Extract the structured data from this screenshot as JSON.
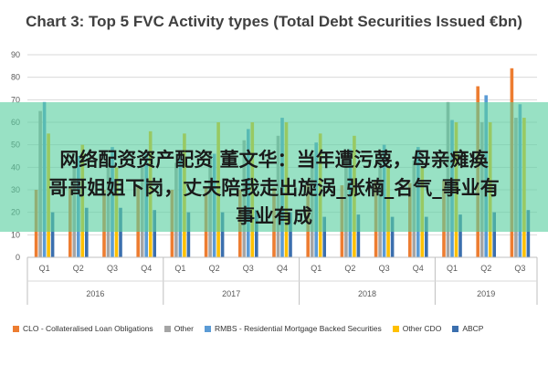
{
  "chart_data": {
    "type": "bar",
    "title": "Chart 3: Top 5 FVC Activity types (Total Debt Securities Issued €bn)",
    "ylim": [
      0,
      90
    ],
    "yticks": [
      "0",
      "10",
      "20",
      "30",
      "40",
      "50",
      "60",
      "70",
      "80",
      "90"
    ],
    "categories": [
      "Q1",
      "Q2",
      "Q3",
      "Q4",
      "Q1",
      "Q2",
      "Q3",
      "Q4",
      "Q1",
      "Q2",
      "Q3",
      "Q4",
      "Q1",
      "Q2",
      "Q3"
    ],
    "groups": [
      {
        "label": "2016",
        "count": 4
      },
      {
        "label": "2017",
        "count": 4
      },
      {
        "label": "2018",
        "count": 4
      },
      {
        "label": "2019",
        "count": 3
      }
    ],
    "series": [
      {
        "name": "CLO - Collateralised Loan Obligations",
        "color": "#ed7d31",
        "values": [
          30,
          31,
          30,
          32,
          30,
          31,
          30,
          31,
          33,
          32,
          34,
          33,
          34,
          76,
          84
        ]
      },
      {
        "name": "Other",
        "color": "#a5a5a5",
        "values": [
          65,
          40,
          42,
          40,
          42,
          46,
          52,
          54,
          46,
          45,
          44,
          43,
          69,
          60,
          62
        ]
      },
      {
        "name": "RMBS - Residential Mortgage Backed Securities",
        "color": "#5b9bd5",
        "values": [
          69,
          45,
          49,
          46,
          46,
          46,
          57,
          62,
          51,
          48,
          50,
          49,
          61,
          72,
          68
        ]
      },
      {
        "name": "Other CDO",
        "color": "#ffc000",
        "values": [
          55,
          50,
          40,
          56,
          55,
          60,
          60,
          60,
          55,
          54,
          40,
          40,
          60,
          60,
          62
        ]
      },
      {
        "name": "ABCP",
        "color": "#3b6fae",
        "values": [
          20,
          22,
          22,
          21,
          20,
          20,
          21,
          20,
          18,
          19,
          18,
          18,
          19,
          20,
          21
        ]
      }
    ]
  },
  "overlay": {
    "line1": "网络配资资产配资 董文华：当年遭污蔑，母亲瘫痪",
    "line2": "哥哥姐姐下岗，丈夫陪我走出旋涡_张楠_名气_事业有",
    "line3": "事业有成"
  }
}
